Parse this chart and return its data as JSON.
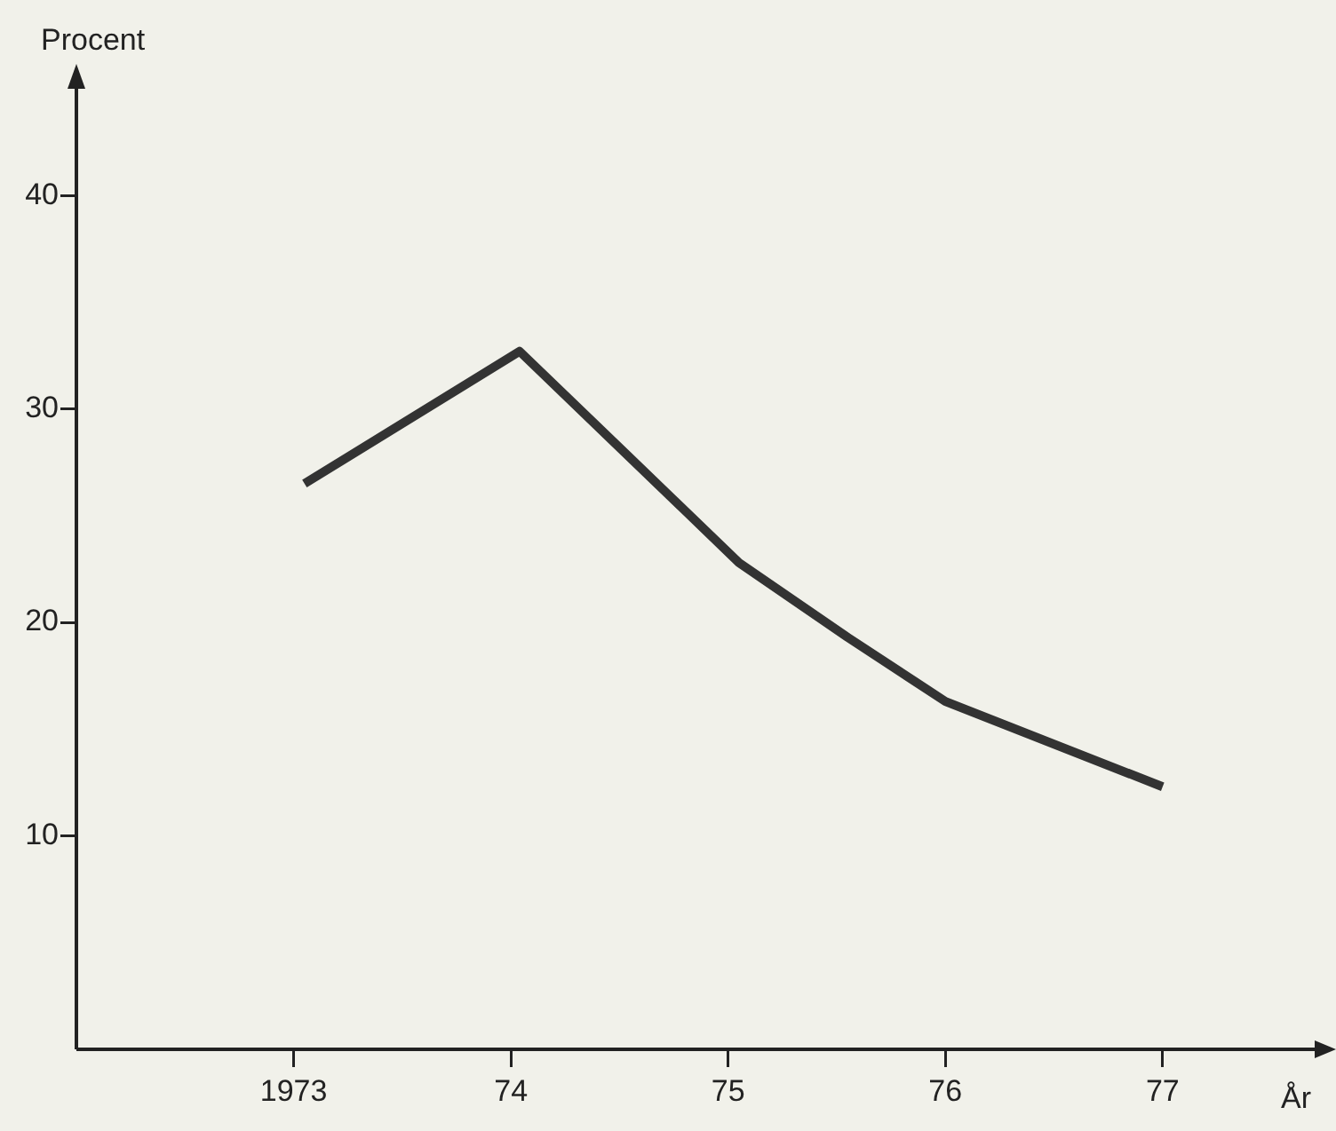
{
  "chart_data": {
    "type": "line",
    "ylabel": "Procent",
    "xlabel": "År",
    "x": [
      1973.05,
      1974.04,
      1975.05,
      1975.55,
      1976,
      1977
    ],
    "series": [
      {
        "color": "#333333",
        "values": [
          26.5,
          32.7,
          22.8,
          19.3,
          16.3,
          12.3
        ]
      }
    ],
    "xlim": [
      1972,
      1977.7
    ],
    "xticks": [
      {
        "value": 1973,
        "label": "1973"
      },
      {
        "value": 1974,
        "label": "74"
      },
      {
        "value": 1975,
        "label": "75"
      },
      {
        "value": 1976,
        "label": "76"
      },
      {
        "value": 1977,
        "label": "77"
      }
    ],
    "ylim": [
      0,
      45
    ],
    "yticks": [
      10,
      20,
      30,
      40
    ],
    "grid": false,
    "legend": false,
    "marker": "none",
    "line_style": "solid"
  }
}
